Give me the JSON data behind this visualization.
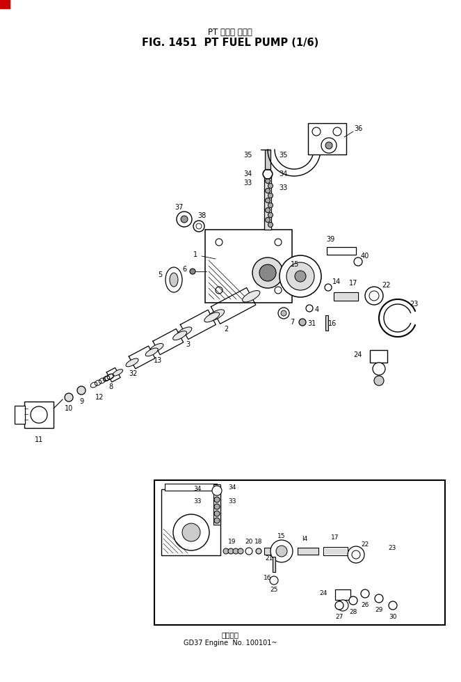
{
  "title_jp": "PT フェル ポンプ",
  "title_en": "FIG. 1451  PT FUEL PUMP (1/6)",
  "footer_jp": "適用番号",
  "footer_en": "GD37 Engine  No. 100101~",
  "bg": "#ffffff",
  "fw": 6.63,
  "fh": 9.8,
  "dpi": 100
}
